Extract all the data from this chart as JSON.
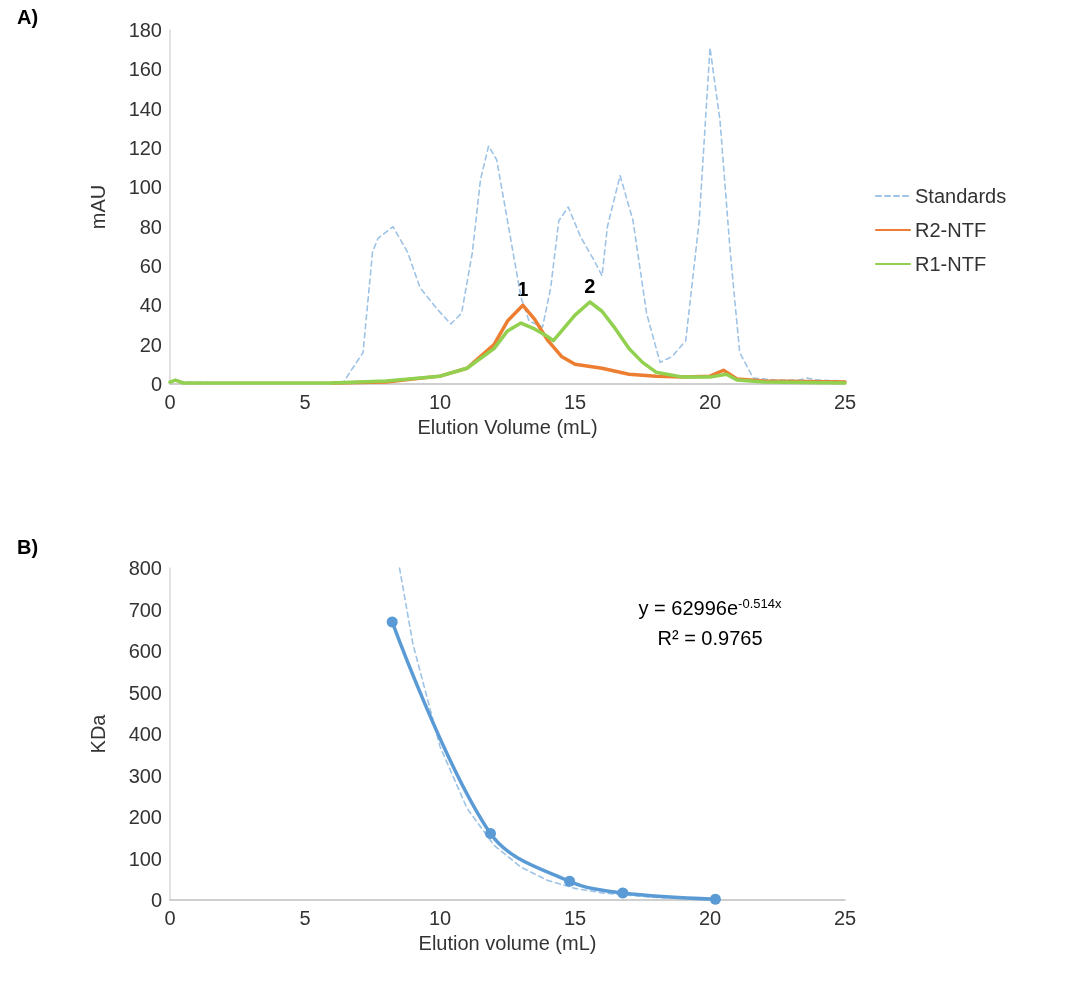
{
  "chart_data": [
    {
      "type": "line",
      "title": "A)",
      "xlabel": "Elution Volume (mL)",
      "ylabel": "mAU",
      "xlim": [
        0,
        25
      ],
      "xticks": [
        0,
        5,
        10,
        15,
        20,
        25
      ],
      "ylim": [
        0,
        180
      ],
      "yticks": [
        0,
        20,
        40,
        60,
        80,
        100,
        120,
        140,
        160,
        180
      ],
      "grid": false,
      "legend": "right",
      "marker": "none",
      "annotations": [
        {
          "text": "1",
          "x": 13.07,
          "y": 40
        },
        {
          "text": "2",
          "x": 15.55,
          "y": 41.7
        }
      ],
      "series": [
        {
          "name": "Standards",
          "color": "#9dc3e6",
          "line_style": "dashed",
          "x": [
            0,
            0.2,
            0.4,
            3,
            6.4,
            7.15,
            7.5,
            7.7,
            8.26,
            8.8,
            9.26,
            9.9,
            10.4,
            10.8,
            11.2,
            11.5,
            11.8,
            12.1,
            12.5,
            13.0,
            13.3,
            13.8,
            14.1,
            14.4,
            14.75,
            15.2,
            15.7,
            16.0,
            16.2,
            16.67,
            17.15,
            17.65,
            18.15,
            18.6,
            19.1,
            19.6,
            20.0,
            20.37,
            20.75,
            21.1,
            21.6,
            22.5,
            23.3,
            23.6,
            24,
            25
          ],
          "values": [
            1,
            2,
            1,
            0.5,
            0.5,
            16,
            67,
            74,
            80,
            67,
            49,
            38,
            30.5,
            36,
            67,
            104,
            121,
            114,
            83,
            44,
            32,
            29,
            49,
            83,
            90,
            75,
            63,
            55,
            80,
            106,
            83,
            36,
            11,
            14,
            22,
            83,
            171,
            134,
            67,
            16,
            3,
            2,
            2,
            3,
            2,
            1.5
          ]
        },
        {
          "name": "R2-NTF",
          "color": "#ed7d31",
          "line_style": "solid",
          "x": [
            6,
            8,
            10,
            11,
            12,
            12.5,
            13.07,
            13.5,
            14,
            14.5,
            15,
            16,
            17,
            18,
            19,
            20,
            20.5,
            21,
            22,
            25
          ],
          "values": [
            0.5,
            1,
            4,
            8,
            20,
            32,
            40,
            33,
            22,
            14,
            10,
            8,
            5,
            4,
            3.5,
            4,
            7,
            2.5,
            1.5,
            1
          ]
        },
        {
          "name": "R1-NTF",
          "color": "#92d050",
          "line_style": "solid",
          "x": [
            0,
            0.2,
            0.5,
            3,
            6,
            8,
            10,
            11,
            12,
            12.5,
            13,
            13.5,
            14,
            14.2,
            15,
            15.55,
            16,
            16.5,
            17,
            17.5,
            18,
            19,
            20,
            20.6,
            21,
            22,
            25
          ],
          "values": [
            1,
            2,
            0.5,
            0.5,
            0.5,
            1.5,
            4,
            8,
            18,
            27,
            31,
            28,
            24,
            22,
            35,
            41.7,
            37,
            28,
            18,
            11,
            6,
            3.5,
            3.5,
            5,
            2,
            1,
            0.5
          ]
        }
      ]
    },
    {
      "type": "line",
      "title": "B)",
      "xlabel": "Elution volume (mL)",
      "ylabel": "KDa",
      "xlim": [
        0,
        25
      ],
      "xticks": [
        0,
        5,
        10,
        15,
        20,
        25
      ],
      "ylim": [
        0,
        800
      ],
      "yticks": [
        0,
        100,
        200,
        300,
        400,
        500,
        600,
        700,
        800
      ],
      "grid": false,
      "legend": false,
      "annotations": [
        "y = 62996e$^{-0.514x}$",
        "R² = 0.9765"
      ],
      "series": [
        {
          "color": "#5b9bd5",
          "marker": "circle",
          "line_style": "solid",
          "x": [
            8.23,
            11.87,
            14.8,
            16.77,
            20.2
          ],
          "values": [
            670,
            160,
            45,
            17,
            2
          ]
        },
        {
          "type": "line",
          "color": "#9dc3e6",
          "marker": "none",
          "line_style": "dashed",
          "x": [
            8.5,
            9,
            10,
            11,
            12,
            13,
            14,
            15,
            16,
            18,
            20.2
          ],
          "values": [
            800,
            616,
            370,
            221,
            132,
            79,
            47,
            28,
            17,
            6,
            2
          ]
        }
      ]
    }
  ]
}
